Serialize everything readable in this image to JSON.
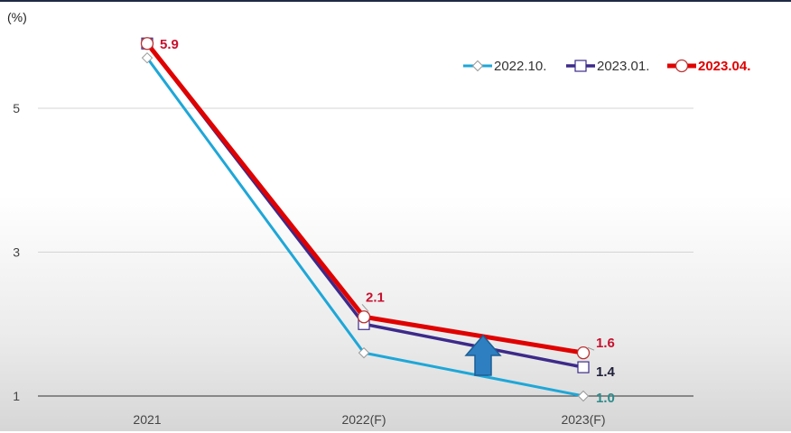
{
  "chart_data": {
    "type": "line",
    "unit_label": "(%)",
    "categories": [
      "2021",
      "2022(F)",
      "2023(F)"
    ],
    "y_ticks": [
      "1",
      "3",
      "5"
    ],
    "ylim": [
      1,
      6.2
    ],
    "grid": true,
    "legend_position": "top-right",
    "series": [
      {
        "name": "2022.10.",
        "values": [
          5.7,
          1.6,
          1.0
        ],
        "color": "#1ea7d8",
        "marker": "diamond",
        "labels": [
          null,
          null,
          "1.0"
        ],
        "label_color": "#2e8b8b"
      },
      {
        "name": "2023.01.",
        "values": [
          5.9,
          2.0,
          1.4
        ],
        "color": "#3d2a8a",
        "marker": "square",
        "labels": [
          null,
          null,
          "1.4"
        ],
        "label_color": "#1f1f3a"
      },
      {
        "name": "2023.04.",
        "values": [
          5.9,
          2.1,
          1.6
        ],
        "color": "#e00000",
        "marker": "circle",
        "labels": [
          "5.9",
          "2.1",
          "1.6"
        ],
        "label_color": "#c8102e"
      }
    ],
    "annotation": {
      "type": "up-arrow",
      "color": "#2e7fc1"
    }
  }
}
